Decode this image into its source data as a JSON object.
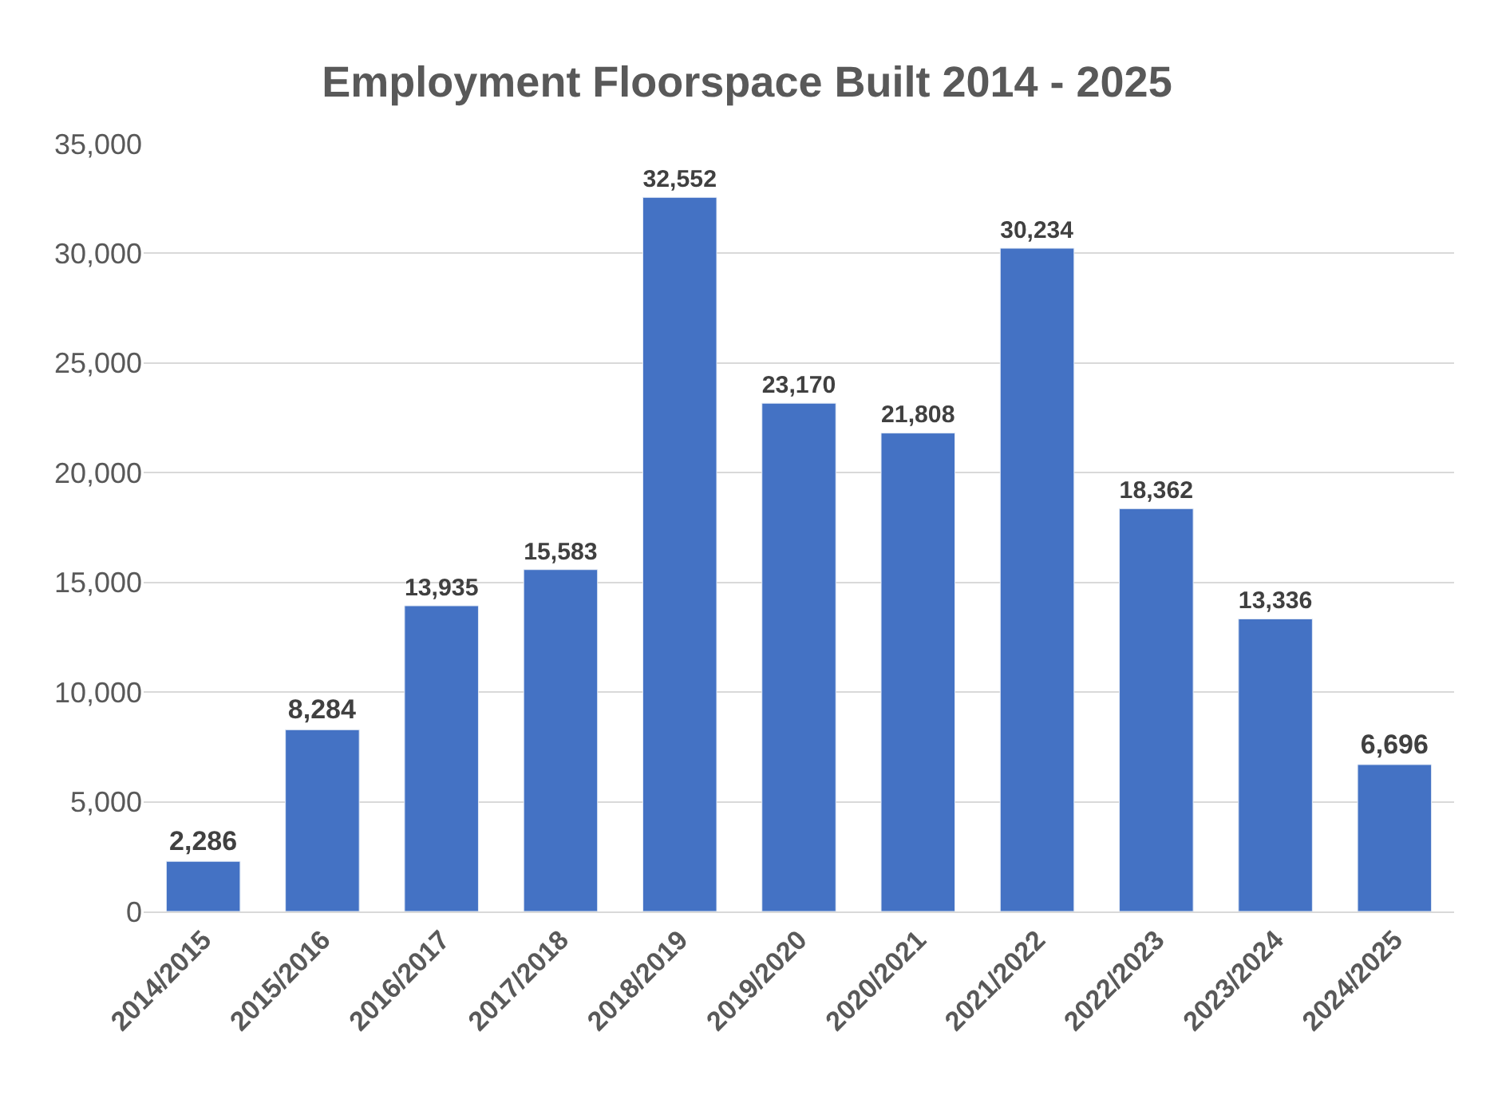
{
  "chart_data": {
    "type": "bar",
    "title": "Employment Floorspace Built 2014 - 2025",
    "categories": [
      "2014/2015",
      "2015/2016",
      "2016/2017",
      "2017/2018",
      "2018/2019",
      "2019/2020",
      "2020/2021",
      "2021/2022",
      "2022/2023",
      "2023/2024",
      "2024/2025"
    ],
    "values": [
      2286,
      8284,
      13935,
      15583,
      32552,
      23170,
      21808,
      30234,
      18362,
      13336,
      6696
    ],
    "color": "#4472c4",
    "ylim": [
      0,
      35000
    ],
    "yticks": [
      0,
      {
        "value": 5000,
        "label": "5,000"
      },
      {
        "value": 10000,
        "label": "10,000"
      },
      {
        "value": 15000,
        "label": "15,000"
      },
      {
        "value": 20000,
        "label": "20,000"
      },
      {
        "value": 25000,
        "label": "25,000"
      },
      {
        "value": 30000,
        "label": "30,000"
      },
      {
        "value": 35000,
        "label": "35,000"
      }
    ],
    "value_labels": [
      "2,286",
      "8,284",
      "13,935",
      "15,583",
      "32,552",
      "23,170",
      "21,808",
      "30,234",
      "18,362",
      "13,336",
      "6,696"
    ],
    "grid": "y",
    "legend": false
  }
}
